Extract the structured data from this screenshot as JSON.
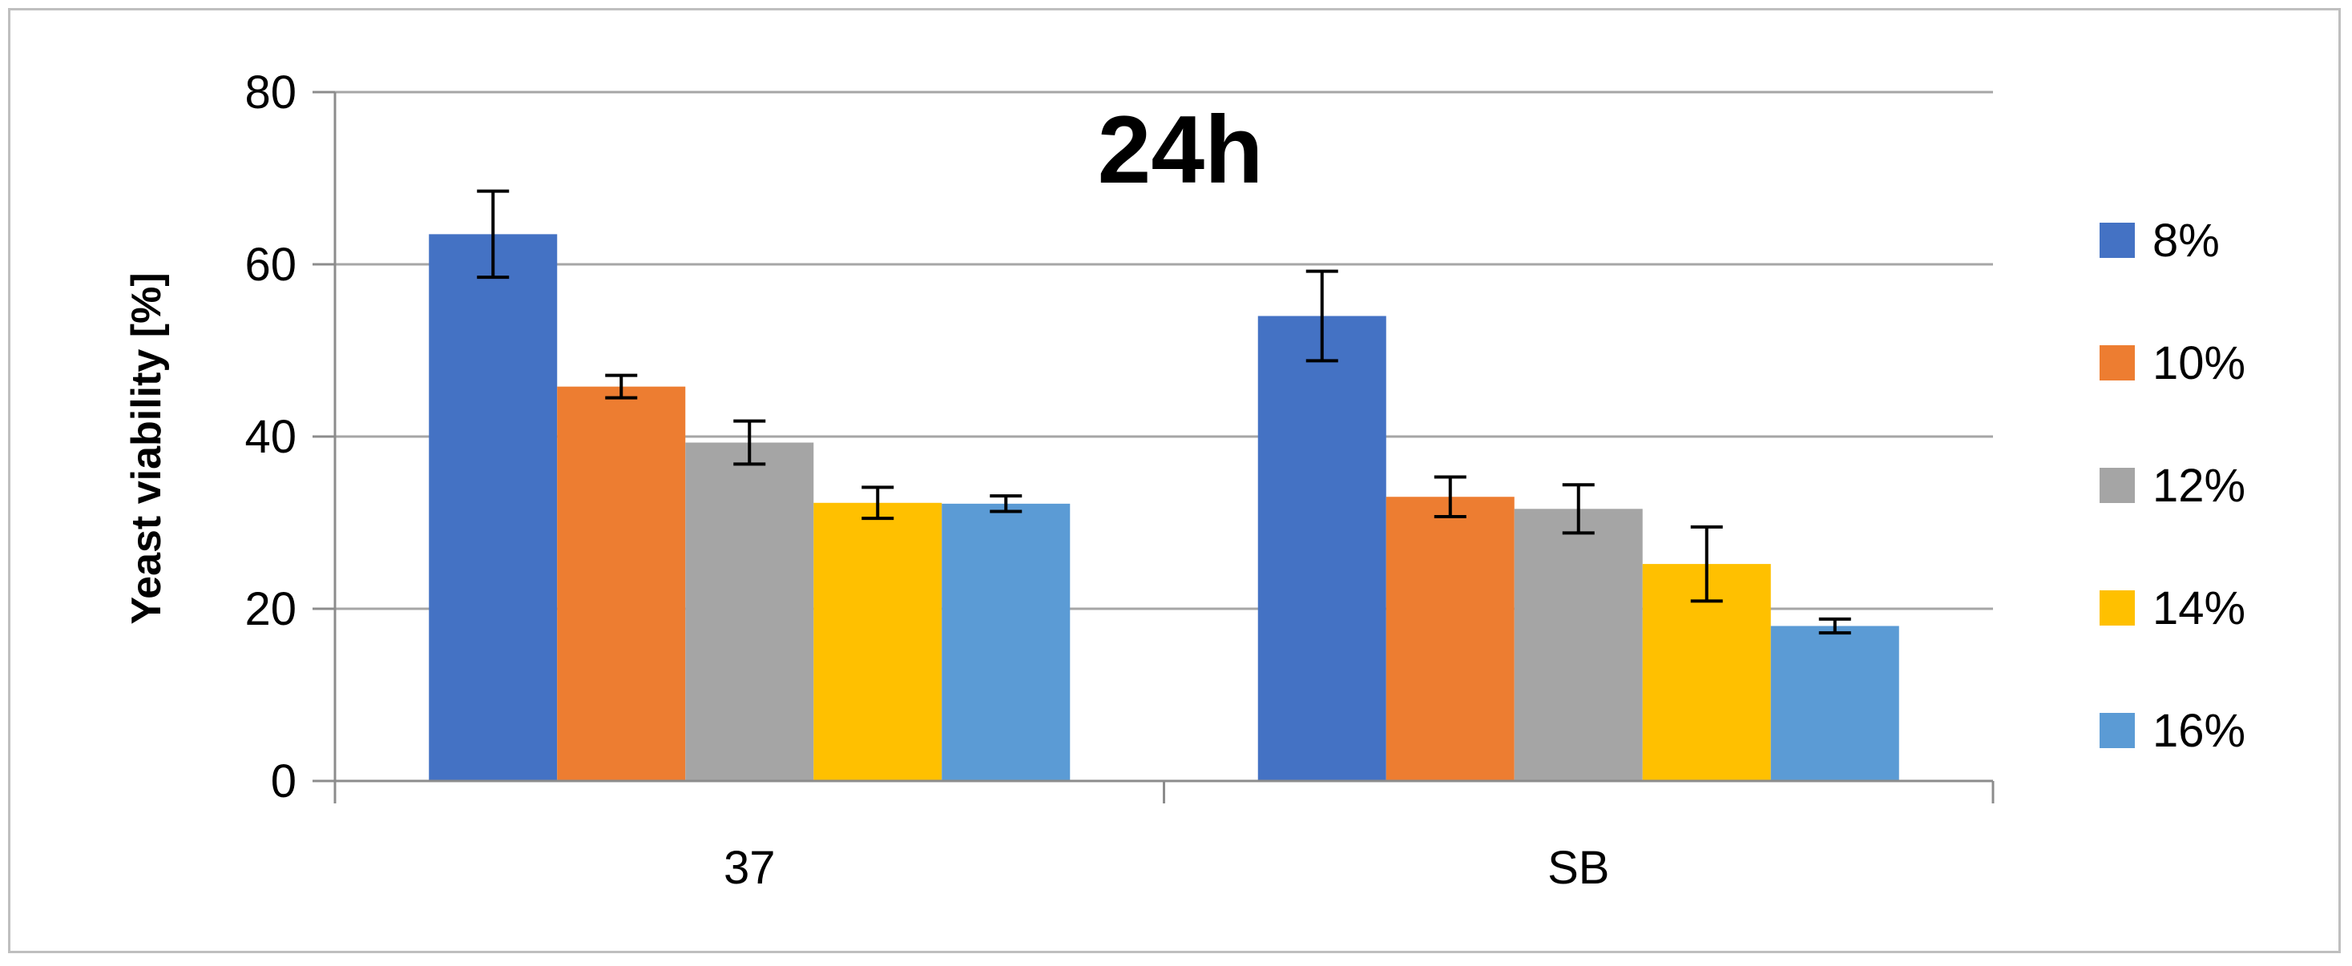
{
  "chart_data": {
    "type": "bar",
    "title": "24h",
    "xlabel": "",
    "ylabel": "Yeast viability [%]",
    "ylim": [
      0,
      80
    ],
    "yticks": [
      0,
      20,
      40,
      60,
      80
    ],
    "grid": true,
    "legend_position": "right",
    "categories": [
      "37",
      "SB"
    ],
    "series": [
      {
        "name": "8%",
        "color": "#4472C4",
        "values": [
          63.5,
          54.0
        ],
        "errors": [
          5.0,
          5.2
        ]
      },
      {
        "name": "10%",
        "color": "#ED7D31",
        "values": [
          45.8,
          33.0
        ],
        "errors": [
          1.3,
          2.3
        ]
      },
      {
        "name": "12%",
        "color": "#A5A5A5",
        "values": [
          39.3,
          31.6
        ],
        "errors": [
          2.5,
          2.8
        ]
      },
      {
        "name": "14%",
        "color": "#FFC000",
        "values": [
          32.3,
          25.2
        ],
        "errors": [
          1.8,
          4.3
        ]
      },
      {
        "name": "16%",
        "color": "#5B9BD5",
        "values": [
          32.2,
          18.0
        ],
        "errors": [
          0.9,
          0.8
        ]
      }
    ]
  }
}
